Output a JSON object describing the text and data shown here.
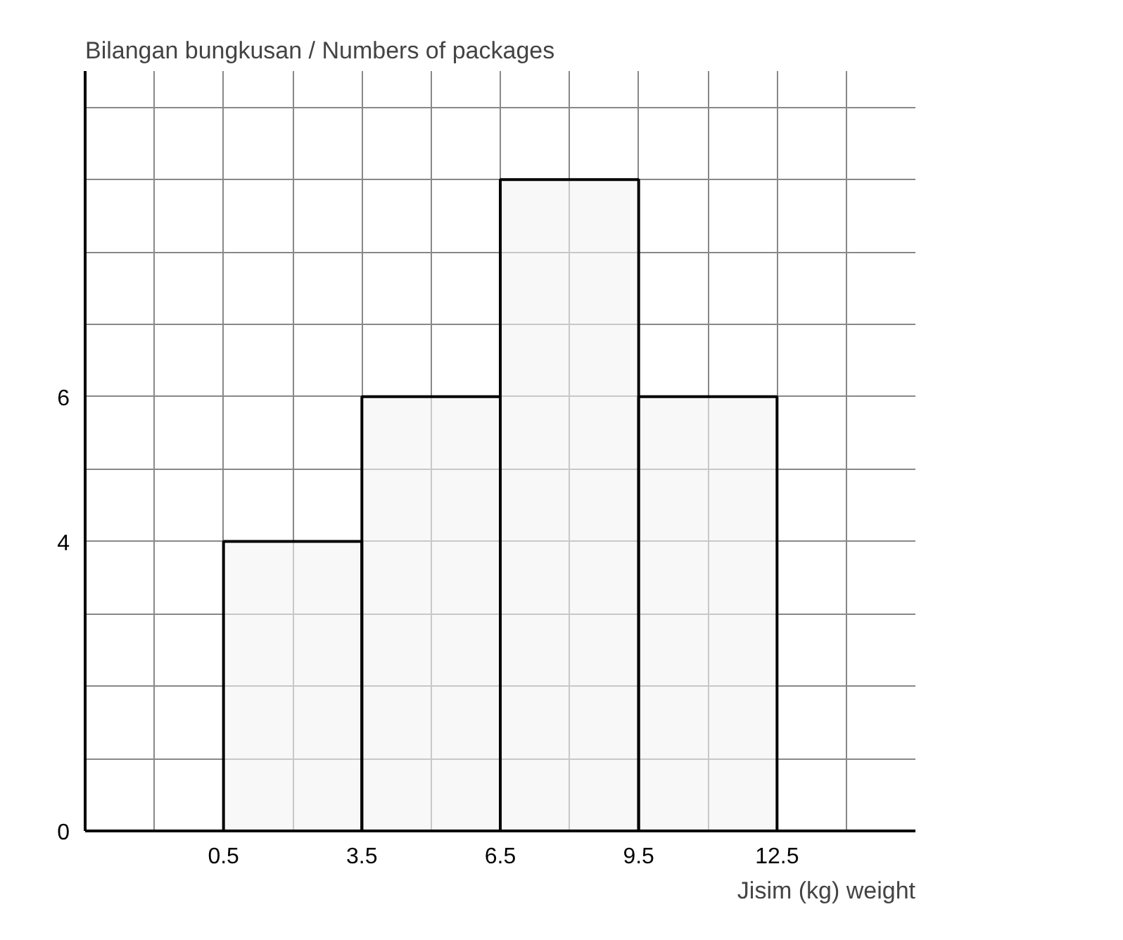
{
  "chart_data": {
    "type": "histogram",
    "ylabel": "Bilangan bungkusan / Numbers of packages",
    "xlabel": "Jisim (kg) weight",
    "bins": [
      0.5,
      3.5,
      6.5,
      9.5,
      12.5
    ],
    "values": [
      4,
      6,
      9,
      6
    ],
    "color": "#f4f4f4",
    "xlim": [
      -2.5,
      15.5
    ],
    "ylim": [
      0,
      10.5
    ],
    "xticks": [
      {
        "value": -1,
        "label": null
      },
      0.5,
      {
        "value": 2,
        "label": null
      },
      3.5,
      {
        "value": 5,
        "label": null
      },
      6.5,
      {
        "value": 8,
        "label": null
      },
      9.5,
      {
        "value": 11,
        "label": null
      },
      12.5,
      {
        "value": 14,
        "label": null
      }
    ],
    "yticks": [
      0,
      {
        "value": 1,
        "label": null
      },
      {
        "value": 2,
        "label": null
      },
      {
        "value": 3,
        "label": null
      },
      4,
      {
        "value": 5,
        "label": null
      },
      6,
      {
        "value": 7,
        "label": null
      },
      {
        "value": 8,
        "label": null
      },
      {
        "value": 9,
        "label": null
      },
      {
        "value": 10,
        "label": null
      }
    ],
    "grid": true
  }
}
